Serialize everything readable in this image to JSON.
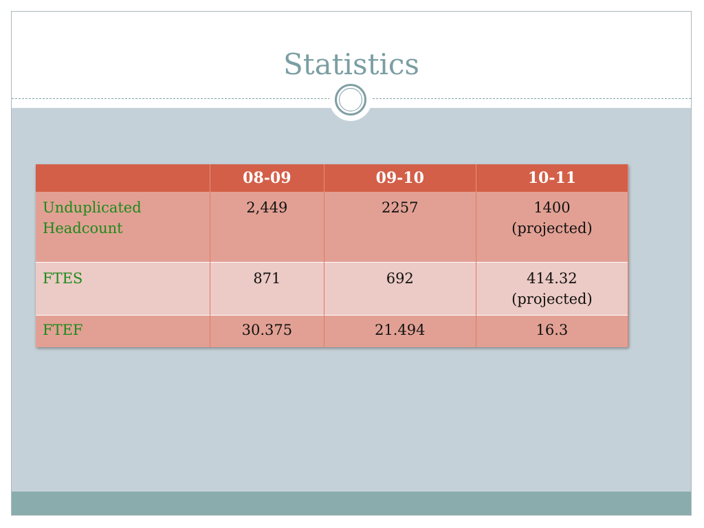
{
  "slide": {
    "title": "Statistics"
  },
  "table": {
    "headers": [
      "",
      "08-09",
      "09-10",
      "10-11"
    ],
    "rows": [
      {
        "label_line1": "Unduplicated",
        "label_line2": "Headcount",
        "v1": "2,449",
        "v2": "2257",
        "v3_line1": "1400",
        "v3_line2": "(projected)"
      },
      {
        "label_line1": "FTES",
        "label_line2": "",
        "v1": "871",
        "v2": "692",
        "v3_line1": "414.32",
        "v3_line2": "(projected)"
      },
      {
        "label_line1": "FTEF",
        "label_line2": "",
        "v1": "30.375",
        "v2": "21.494",
        "v3_line1": "16.3",
        "v3_line2": ""
      }
    ]
  },
  "colors": {
    "title": "#7b9ea3",
    "header_bg": "#d35f48",
    "row_odd": "#e2a094",
    "row_even": "#eccac5",
    "row_label": "#1a8a1a",
    "body_band": "#c5d1d8",
    "footer_band": "#8aacad"
  }
}
